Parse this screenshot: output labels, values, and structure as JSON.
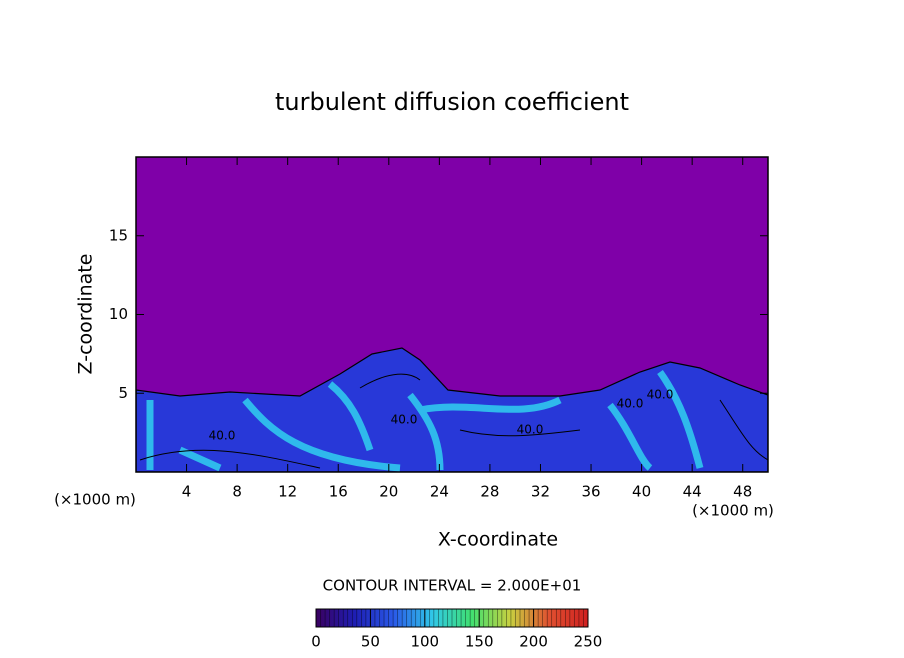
{
  "chart_data": {
    "type": "contour",
    "title": "turbulent diffusion coefficient",
    "x_label": "X-coordinate",
    "y_label": "Z-coordinate",
    "x_unit": "(×1000 m)",
    "y_unit": "(×1000 m)",
    "xlim": [
      0,
      50
    ],
    "xticks": [
      4,
      8,
      12,
      16,
      20,
      24,
      28,
      32,
      36,
      40,
      44,
      48
    ],
    "ylim": [
      0,
      20
    ],
    "yticks": [
      5,
      10,
      15
    ],
    "background_color": "#7f00a8",
    "contour_interval_label": "CONTOUR INTERVAL = 2.000E+01",
    "contour_labels": [
      "40.0",
      "40.0",
      "40.0",
      "40.0",
      "40.0"
    ],
    "colorbar": {
      "lim": [
        0,
        250
      ],
      "ticks": [
        0,
        50,
        100,
        150,
        200,
        250
      ],
      "colors": [
        "#3a0060",
        "#1e1eb4",
        "#2a5ae8",
        "#30c8e8",
        "#40e070",
        "#c8d040",
        "#e05030",
        "#d02020"
      ]
    }
  }
}
